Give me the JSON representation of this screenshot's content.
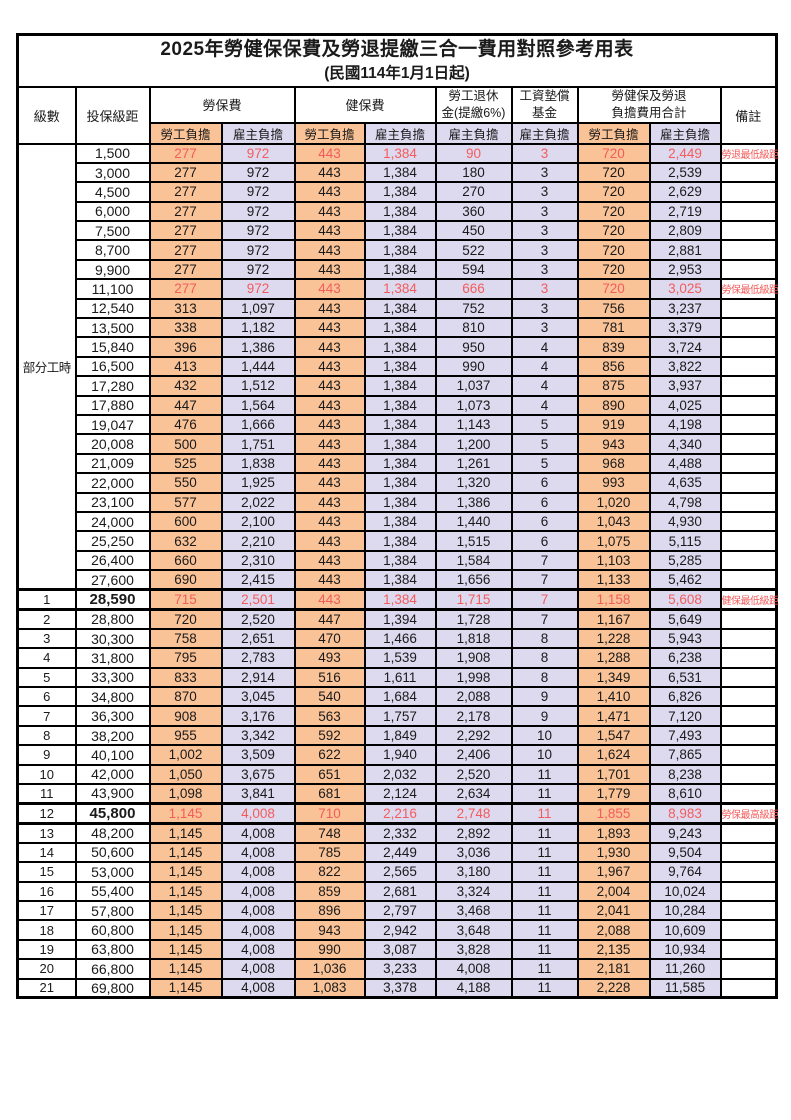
{
  "title": "2025年勞健保保費及勞退提繳三合一費用對照參考用表",
  "subtitle": "(民國114年1月1日起)",
  "columns": {
    "level": "級數",
    "bracket": "投保級距",
    "labor_insurance": "勞保費",
    "health_insurance": "健保費",
    "pension_line1": "勞工退休",
    "pension_line2": "金(提繳6%)",
    "wage_fund_line1": "工資墊償",
    "wage_fund_line2": "基金",
    "total_line1": "勞健保及勞退",
    "total_line2": "負擔費用合計",
    "remark": "備註",
    "employee_label": "勞工負擔",
    "employer_label": "雇主負擔"
  },
  "part_time_label": "部分工時",
  "colors": {
    "employee_fill": "#FAC397",
    "employer_fill": "#DDDAF0",
    "highlight_red": "#F45B5B"
  },
  "rows": [
    {
      "level": "",
      "bracket": "1,500",
      "values": [
        "277",
        "972",
        "443",
        "1,384",
        "90",
        "3",
        "720",
        "2,449"
      ],
      "note": "勞退最低級距",
      "red": true,
      "thick": false,
      "bold": false
    },
    {
      "level": "",
      "bracket": "3,000",
      "values": [
        "277",
        "972",
        "443",
        "1,384",
        "180",
        "3",
        "720",
        "2,539"
      ],
      "note": "",
      "red": false,
      "thick": false,
      "bold": false
    },
    {
      "level": "",
      "bracket": "4,500",
      "values": [
        "277",
        "972",
        "443",
        "1,384",
        "270",
        "3",
        "720",
        "2,629"
      ],
      "note": "",
      "red": false,
      "thick": false,
      "bold": false
    },
    {
      "level": "",
      "bracket": "6,000",
      "values": [
        "277",
        "972",
        "443",
        "1,384",
        "360",
        "3",
        "720",
        "2,719"
      ],
      "note": "",
      "red": false,
      "thick": false,
      "bold": false
    },
    {
      "level": "",
      "bracket": "7,500",
      "values": [
        "277",
        "972",
        "443",
        "1,384",
        "450",
        "3",
        "720",
        "2,809"
      ],
      "note": "",
      "red": false,
      "thick": false,
      "bold": false
    },
    {
      "level": "",
      "bracket": "8,700",
      "values": [
        "277",
        "972",
        "443",
        "1,384",
        "522",
        "3",
        "720",
        "2,881"
      ],
      "note": "",
      "red": false,
      "thick": false,
      "bold": false
    },
    {
      "level": "",
      "bracket": "9,900",
      "values": [
        "277",
        "972",
        "443",
        "1,384",
        "594",
        "3",
        "720",
        "2,953"
      ],
      "note": "",
      "red": false,
      "thick": false,
      "bold": false
    },
    {
      "level": "",
      "bracket": "11,100",
      "values": [
        "277",
        "972",
        "443",
        "1,384",
        "666",
        "3",
        "720",
        "3,025"
      ],
      "note": "勞保最低級距",
      "red": true,
      "thick": false,
      "bold": false
    },
    {
      "level": "",
      "bracket": "12,540",
      "values": [
        "313",
        "1,097",
        "443",
        "1,384",
        "752",
        "3",
        "756",
        "3,237"
      ],
      "note": "",
      "red": false,
      "thick": false,
      "bold": false
    },
    {
      "level": "",
      "bracket": "13,500",
      "values": [
        "338",
        "1,182",
        "443",
        "1,384",
        "810",
        "3",
        "781",
        "3,379"
      ],
      "note": "",
      "red": false,
      "thick": false,
      "bold": false
    },
    {
      "level": "",
      "bracket": "15,840",
      "values": [
        "396",
        "1,386",
        "443",
        "1,384",
        "950",
        "4",
        "839",
        "3,724"
      ],
      "note": "",
      "red": false,
      "thick": false,
      "bold": false
    },
    {
      "level": "",
      "bracket": "16,500",
      "values": [
        "413",
        "1,444",
        "443",
        "1,384",
        "990",
        "4",
        "856",
        "3,822"
      ],
      "note": "",
      "red": false,
      "thick": false,
      "bold": false
    },
    {
      "level": "",
      "bracket": "17,280",
      "values": [
        "432",
        "1,512",
        "443",
        "1,384",
        "1,037",
        "4",
        "875",
        "3,937"
      ],
      "note": "",
      "red": false,
      "thick": false,
      "bold": false
    },
    {
      "level": "",
      "bracket": "17,880",
      "values": [
        "447",
        "1,564",
        "443",
        "1,384",
        "1,073",
        "4",
        "890",
        "4,025"
      ],
      "note": "",
      "red": false,
      "thick": false,
      "bold": false
    },
    {
      "level": "",
      "bracket": "19,047",
      "values": [
        "476",
        "1,666",
        "443",
        "1,384",
        "1,143",
        "5",
        "919",
        "4,198"
      ],
      "note": "",
      "red": false,
      "thick": false,
      "bold": false
    },
    {
      "level": "",
      "bracket": "20,008",
      "values": [
        "500",
        "1,751",
        "443",
        "1,384",
        "1,200",
        "5",
        "943",
        "4,340"
      ],
      "note": "",
      "red": false,
      "thick": false,
      "bold": false
    },
    {
      "level": "",
      "bracket": "21,009",
      "values": [
        "525",
        "1,838",
        "443",
        "1,384",
        "1,261",
        "5",
        "968",
        "4,488"
      ],
      "note": "",
      "red": false,
      "thick": false,
      "bold": false
    },
    {
      "level": "",
      "bracket": "22,000",
      "values": [
        "550",
        "1,925",
        "443",
        "1,384",
        "1,320",
        "6",
        "993",
        "4,635"
      ],
      "note": "",
      "red": false,
      "thick": false,
      "bold": false
    },
    {
      "level": "",
      "bracket": "23,100",
      "values": [
        "577",
        "2,022",
        "443",
        "1,384",
        "1,386",
        "6",
        "1,020",
        "4,798"
      ],
      "note": "",
      "red": false,
      "thick": false,
      "bold": false
    },
    {
      "level": "",
      "bracket": "24,000",
      "values": [
        "600",
        "2,100",
        "443",
        "1,384",
        "1,440",
        "6",
        "1,043",
        "4,930"
      ],
      "note": "",
      "red": false,
      "thick": false,
      "bold": false
    },
    {
      "level": "",
      "bracket": "25,250",
      "values": [
        "632",
        "2,210",
        "443",
        "1,384",
        "1,515",
        "6",
        "1,075",
        "5,115"
      ],
      "note": "",
      "red": false,
      "thick": false,
      "bold": false
    },
    {
      "level": "",
      "bracket": "26,400",
      "values": [
        "660",
        "2,310",
        "443",
        "1,384",
        "1,584",
        "7",
        "1,103",
        "5,285"
      ],
      "note": "",
      "red": false,
      "thick": false,
      "bold": false
    },
    {
      "level": "",
      "bracket": "27,600",
      "values": [
        "690",
        "2,415",
        "443",
        "1,384",
        "1,656",
        "7",
        "1,133",
        "5,462"
      ],
      "note": "",
      "red": false,
      "thick": false,
      "bold": false
    },
    {
      "level": "1",
      "bracket": "28,590",
      "values": [
        "715",
        "2,501",
        "443",
        "1,384",
        "1,715",
        "7",
        "1,158",
        "5,608"
      ],
      "note": "健保最低級距",
      "red": true,
      "thick": true,
      "bold": true
    },
    {
      "level": "2",
      "bracket": "28,800",
      "values": [
        "720",
        "2,520",
        "447",
        "1,394",
        "1,728",
        "7",
        "1,167",
        "5,649"
      ],
      "note": "",
      "red": false,
      "thick": false,
      "bold": false
    },
    {
      "level": "3",
      "bracket": "30,300",
      "values": [
        "758",
        "2,651",
        "470",
        "1,466",
        "1,818",
        "8",
        "1,228",
        "5,943"
      ],
      "note": "",
      "red": false,
      "thick": false,
      "bold": false
    },
    {
      "level": "4",
      "bracket": "31,800",
      "values": [
        "795",
        "2,783",
        "493",
        "1,539",
        "1,908",
        "8",
        "1,288",
        "6,238"
      ],
      "note": "",
      "red": false,
      "thick": false,
      "bold": false
    },
    {
      "level": "5",
      "bracket": "33,300",
      "values": [
        "833",
        "2,914",
        "516",
        "1,611",
        "1,998",
        "8",
        "1,349",
        "6,531"
      ],
      "note": "",
      "red": false,
      "thick": false,
      "bold": false
    },
    {
      "level": "6",
      "bracket": "34,800",
      "values": [
        "870",
        "3,045",
        "540",
        "1,684",
        "2,088",
        "9",
        "1,410",
        "6,826"
      ],
      "note": "",
      "red": false,
      "thick": false,
      "bold": false
    },
    {
      "level": "7",
      "bracket": "36,300",
      "values": [
        "908",
        "3,176",
        "563",
        "1,757",
        "2,178",
        "9",
        "1,471",
        "7,120"
      ],
      "note": "",
      "red": false,
      "thick": false,
      "bold": false
    },
    {
      "level": "8",
      "bracket": "38,200",
      "values": [
        "955",
        "3,342",
        "592",
        "1,849",
        "2,292",
        "10",
        "1,547",
        "7,493"
      ],
      "note": "",
      "red": false,
      "thick": false,
      "bold": false
    },
    {
      "level": "9",
      "bracket": "40,100",
      "values": [
        "1,002",
        "3,509",
        "622",
        "1,940",
        "2,406",
        "10",
        "1,624",
        "7,865"
      ],
      "note": "",
      "red": false,
      "thick": false,
      "bold": false
    },
    {
      "level": "10",
      "bracket": "42,000",
      "values": [
        "1,050",
        "3,675",
        "651",
        "2,032",
        "2,520",
        "11",
        "1,701",
        "8,238"
      ],
      "note": "",
      "red": false,
      "thick": false,
      "bold": false
    },
    {
      "level": "11",
      "bracket": "43,900",
      "values": [
        "1,098",
        "3,841",
        "681",
        "2,124",
        "2,634",
        "11",
        "1,779",
        "8,610"
      ],
      "note": "",
      "red": false,
      "thick": false,
      "bold": false
    },
    {
      "level": "12",
      "bracket": "45,800",
      "values": [
        "1,145",
        "4,008",
        "710",
        "2,216",
        "2,748",
        "11",
        "1,855",
        "8,983"
      ],
      "note": "勞保最高級距",
      "red": true,
      "thick": true,
      "bold": true
    },
    {
      "level": "13",
      "bracket": "48,200",
      "values": [
        "1,145",
        "4,008",
        "748",
        "2,332",
        "2,892",
        "11",
        "1,893",
        "9,243"
      ],
      "note": "",
      "red": false,
      "thick": false,
      "bold": false
    },
    {
      "level": "14",
      "bracket": "50,600",
      "values": [
        "1,145",
        "4,008",
        "785",
        "2,449",
        "3,036",
        "11",
        "1,930",
        "9,504"
      ],
      "note": "",
      "red": false,
      "thick": false,
      "bold": false
    },
    {
      "level": "15",
      "bracket": "53,000",
      "values": [
        "1,145",
        "4,008",
        "822",
        "2,565",
        "3,180",
        "11",
        "1,967",
        "9,764"
      ],
      "note": "",
      "red": false,
      "thick": false,
      "bold": false
    },
    {
      "level": "16",
      "bracket": "55,400",
      "values": [
        "1,145",
        "4,008",
        "859",
        "2,681",
        "3,324",
        "11",
        "2,004",
        "10,024"
      ],
      "note": "",
      "red": false,
      "thick": false,
      "bold": false
    },
    {
      "level": "17",
      "bracket": "57,800",
      "values": [
        "1,145",
        "4,008",
        "896",
        "2,797",
        "3,468",
        "11",
        "2,041",
        "10,284"
      ],
      "note": "",
      "red": false,
      "thick": false,
      "bold": false
    },
    {
      "level": "18",
      "bracket": "60,800",
      "values": [
        "1,145",
        "4,008",
        "943",
        "2,942",
        "3,648",
        "11",
        "2,088",
        "10,609"
      ],
      "note": "",
      "red": false,
      "thick": false,
      "bold": false
    },
    {
      "level": "19",
      "bracket": "63,800",
      "values": [
        "1,145",
        "4,008",
        "990",
        "3,087",
        "3,828",
        "11",
        "2,135",
        "10,934"
      ],
      "note": "",
      "red": false,
      "thick": false,
      "bold": false
    },
    {
      "level": "20",
      "bracket": "66,800",
      "values": [
        "1,145",
        "4,008",
        "1,036",
        "3,233",
        "4,008",
        "11",
        "2,181",
        "11,260"
      ],
      "note": "",
      "red": false,
      "thick": false,
      "bold": false
    },
    {
      "level": "21",
      "bracket": "69,800",
      "values": [
        "1,145",
        "4,008",
        "1,083",
        "3,378",
        "4,188",
        "11",
        "2,228",
        "11,585"
      ],
      "note": "",
      "red": false,
      "thick": false,
      "bold": false
    }
  ]
}
